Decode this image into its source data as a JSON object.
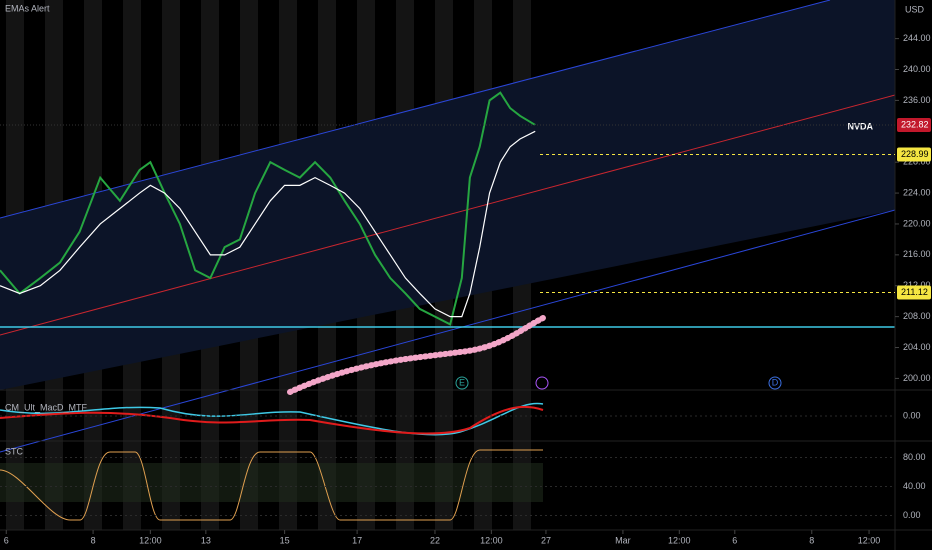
{
  "chart_data": {
    "type": "line",
    "title": "EMAs Alert",
    "y_axis_label": "USD",
    "ticker": "NVDA",
    "xlim": [
      0,
      100
    ],
    "ylim": [
      198.5,
      249
    ],
    "xticks": [
      {
        "value": 0.7,
        "label": "6"
      },
      {
        "value": 10.4,
        "label": "8"
      },
      {
        "value": 16.8,
        "label": "12:00"
      },
      {
        "value": 23,
        "label": "13"
      },
      {
        "value": 31.8,
        "label": "15"
      },
      {
        "value": 39.9,
        "label": "17"
      },
      {
        "value": 48.6,
        "label": "22"
      },
      {
        "value": 54.9,
        "label": "12:00"
      },
      {
        "value": 61,
        "label": "27"
      },
      {
        "value": 69.6,
        "label": "Mar"
      },
      {
        "value": 75.9,
        "label": "12:00"
      },
      {
        "value": 82.1,
        "label": "6"
      },
      {
        "value": 90.7,
        "label": "8"
      },
      {
        "value": 97.1,
        "label": "12:00"
      }
    ],
    "yticks": [
      {
        "value": 200,
        "label": "200.00"
      },
      {
        "value": 204,
        "label": "204.00"
      },
      {
        "value": 208,
        "label": "208.00"
      },
      {
        "value": 212,
        "label": "212.00"
      },
      {
        "value": 216,
        "label": "216.00"
      },
      {
        "value": 220,
        "label": "220.00"
      },
      {
        "value": 224,
        "label": "224.00"
      },
      {
        "value": 228,
        "label": "228.00"
      },
      {
        "value": 236,
        "label": "236.00"
      },
      {
        "value": 240,
        "label": "240.00"
      },
      {
        "value": 244,
        "label": "244.00"
      }
    ],
    "x": [
      0,
      2.2,
      4.5,
      6.7,
      8.9,
      11.2,
      13.4,
      15.6,
      16.8,
      18.4,
      20.1,
      21.8,
      23.5,
      25.1,
      26.8,
      28.5,
      30.2,
      31.8,
      33.5,
      35.2,
      36.9,
      38.5,
      40.2,
      41.9,
      43.6,
      45.3,
      46.9,
      48.6,
      50.3,
      51.6,
      52.5,
      53.6,
      54.7,
      55.9,
      57,
      58.1,
      59.8
    ],
    "series": [
      {
        "color": "#26a641",
        "values": [
          214,
          211,
          213,
          215,
          219,
          226,
          223,
          227,
          228,
          224,
          220,
          214,
          213,
          217,
          218,
          224,
          228,
          227,
          226,
          228,
          226,
          223,
          220,
          216,
          213,
          211,
          209,
          208,
          207,
          213,
          226,
          230,
          236,
          237,
          235,
          234,
          232.82
        ]
      },
      {
        "color": "#ffffff",
        "values": [
          212,
          211,
          212,
          214,
          217,
          220,
          222,
          224,
          225,
          224,
          222,
          219,
          216,
          216,
          217,
          220,
          223,
          225,
          225,
          226,
          225,
          224,
          222,
          219,
          216,
          213,
          211,
          209,
          208,
          208,
          211,
          217,
          224,
          228,
          230,
          231,
          232
        ]
      }
    ],
    "price_tags": [
      {
        "value": 232.82,
        "color": "#c2182b"
      },
      {
        "value": 228.99,
        "color": "#f5e642"
      },
      {
        "value": 211.12,
        "color": "#f5e642"
      }
    ],
    "event_markers": [
      "E",
      "D"
    ],
    "panels": [
      {
        "title": "CM_Ult_MacD_MTF",
        "ylim": [
          -3,
          3
        ],
        "yticks": [
          {
            "value": 0,
            "label": "0.00"
          }
        ]
      },
      {
        "title": "STC",
        "ylim": [
          -20,
          100
        ],
        "yticks": [
          {
            "value": 80,
            "label": "80.00"
          },
          {
            "value": 40,
            "label": "40.00"
          },
          {
            "value": 0,
            "label": "0.00"
          }
        ]
      }
    ]
  }
}
